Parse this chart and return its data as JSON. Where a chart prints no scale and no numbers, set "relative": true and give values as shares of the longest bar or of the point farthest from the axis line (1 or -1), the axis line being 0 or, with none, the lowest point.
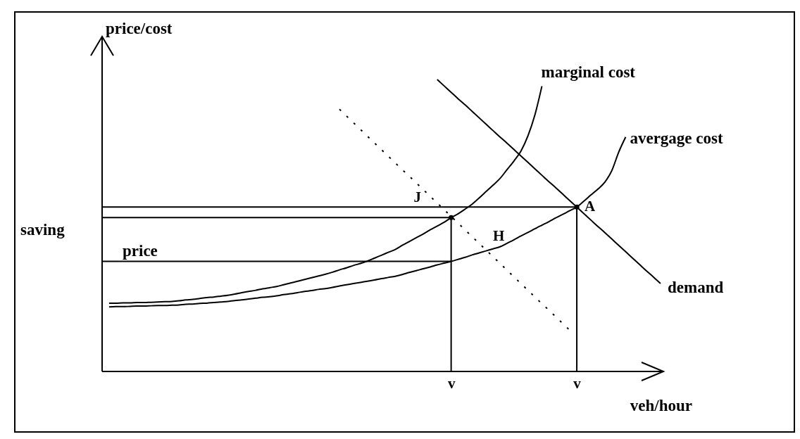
{
  "chart_data": {
    "type": "line",
    "relative": true,
    "ylabel": "price/cost",
    "xlabel": "veh/hour",
    "categories": [
      null,
      null,
      null,
      null,
      null,
      null,
      null,
      null,
      null,
      null,
      null,
      null,
      null,
      null,
      null,
      null,
      null,
      null,
      null,
      null,
      null,
      null,
      null,
      null,
      null,
      null,
      null,
      null,
      null,
      null,
      null,
      null,
      null,
      null,
      null,
      null,
      null,
      null,
      null,
      null,
      null,
      null,
      null,
      null,
      null,
      null,
      null,
      null,
      null,
      null,
      "v",
      null,
      null,
      null,
      null,
      null,
      null,
      null,
      null,
      null,
      null,
      null,
      null,
      null,
      null,
      null,
      null,
      null,
      "v",
      null,
      null,
      null,
      null,
      null,
      null,
      null,
      null,
      null,
      null,
      null,
      null
    ],
    "annotations": [
      "saving",
      "J",
      "H",
      "A"
    ],
    "series": [
      {
        "name": "marginal cost",
        "color": "#000000",
        "values": [
          null,
          0.234,
          0.234,
          0.235,
          0.235,
          0.236,
          0.236,
          0.237,
          0.238,
          0.239,
          0.24,
          0.242,
          0.245,
          0.247,
          0.25,
          0.253,
          0.255,
          0.258,
          0.261,
          0.265,
          0.27,
          0.274,
          0.278,
          0.283,
          0.287,
          0.291,
          0.297,
          0.303,
          0.309,
          0.315,
          0.321,
          0.327,
          0.333,
          0.34,
          0.348,
          0.355,
          0.363,
          0.37,
          0.378,
          0.388,
          0.398,
          0.408,
          0.418,
          0.432,
          0.445,
          0.458,
          0.471,
          0.485,
          0.498,
          0.511,
          0.527,
          0.54,
          0.556,
          0.573,
          0.594,
          0.616,
          0.638,
          0.661,
          0.691,
          0.721,
          0.755,
          0.807,
          0.879,
          0.977,
          null,
          null,
          null,
          null,
          null,
          null,
          null,
          null,
          null,
          null,
          null,
          null,
          null,
          null,
          null,
          null,
          null
        ]
      },
      {
        "name": "avergage cost",
        "color": "#000000",
        "values": [
          null,
          0.221,
          0.222,
          0.222,
          0.223,
          0.224,
          0.224,
          0.225,
          0.226,
          0.226,
          0.227,
          0.228,
          0.23,
          0.231,
          0.233,
          0.234,
          0.236,
          0.238,
          0.24,
          0.243,
          0.245,
          0.248,
          0.251,
          0.254,
          0.256,
          0.259,
          0.263,
          0.266,
          0.27,
          0.274,
          0.277,
          0.281,
          0.284,
          0.288,
          0.293,
          0.297,
          0.301,
          0.305,
          0.309,
          0.313,
          0.318,
          0.322,
          0.326,
          0.332,
          0.339,
          0.345,
          0.352,
          0.358,
          0.365,
          0.371,
          0.377,
          0.384,
          0.391,
          0.399,
          0.406,
          0.413,
          0.42,
          0.427,
          0.439,
          0.451,
          0.464,
          0.476,
          0.489,
          0.501,
          0.513,
          0.526,
          0.538,
          0.551,
          0.563,
          0.583,
          0.604,
          0.624,
          0.648,
          0.687,
          0.751,
          0.803,
          null,
          null,
          null,
          null,
          null
        ]
      },
      {
        "name": "demand",
        "color": "#000000",
        "values": [
          null,
          null,
          null,
          null,
          null,
          null,
          null,
          null,
          null,
          null,
          null,
          null,
          null,
          null,
          null,
          null,
          null,
          null,
          null,
          null,
          null,
          null,
          null,
          null,
          null,
          null,
          null,
          null,
          null,
          null,
          null,
          null,
          null,
          null,
          null,
          null,
          null,
          null,
          null,
          null,
          null,
          null,
          null,
          null,
          null,
          null,
          null,
          null,
          1.0,
          0.978,
          0.956,
          0.934,
          0.913,
          0.891,
          0.869,
          0.847,
          0.825,
          0.803,
          0.782,
          0.76,
          0.738,
          0.716,
          0.694,
          0.672,
          0.65,
          0.629,
          0.607,
          0.585,
          0.563,
          0.541,
          0.519,
          0.497,
          0.476,
          0.454,
          0.432,
          0.41,
          0.388,
          0.366,
          0.344,
          0.323,
          0.301
        ]
      },
      {
        "color": "#000000",
        "line_style": "dotted",
        "values": [
          null,
          null,
          null,
          null,
          null,
          null,
          null,
          null,
          null,
          null,
          null,
          null,
          null,
          null,
          null,
          null,
          null,
          null,
          null,
          null,
          null,
          null,
          null,
          null,
          null,
          null,
          null,
          null,
          null,
          null,
          null,
          null,
          null,
          null,
          0.898,
          0.875,
          0.852,
          0.829,
          0.806,
          0.783,
          0.76,
          0.737,
          0.714,
          0.691,
          0.669,
          0.646,
          0.623,
          0.6,
          0.577,
          0.554,
          0.531,
          0.508,
          0.485,
          0.462,
          0.439,
          0.416,
          0.393,
          0.37,
          0.347,
          0.324,
          0.301,
          0.278,
          0.255,
          0.232,
          0.21,
          0.187,
          0.164,
          0.141,
          null,
          null,
          null,
          null,
          null,
          null,
          null,
          null,
          null,
          null,
          null,
          null,
          null
        ]
      },
      {
        "name": "price",
        "color": "#000000",
        "values": [
          0.377,
          0.377,
          0.377,
          0.377,
          0.377,
          0.377,
          0.377,
          0.377,
          0.377,
          0.377,
          0.377,
          0.377,
          0.377,
          0.377,
          0.377,
          0.377,
          0.377,
          0.377,
          0.377,
          0.377,
          0.377,
          0.377,
          0.377,
          0.377,
          0.377,
          0.377,
          0.377,
          0.377,
          0.377,
          0.377,
          0.377,
          0.377,
          0.377,
          0.377,
          0.377,
          0.377,
          0.377,
          0.377,
          0.377,
          0.377,
          0.377,
          0.377,
          0.377,
          0.377,
          0.377,
          0.377,
          0.377,
          0.377,
          0.377,
          0.377,
          0.377,
          null,
          null,
          null,
          null,
          null,
          null,
          null,
          null,
          null,
          null,
          null,
          null,
          null,
          null,
          null,
          null,
          null,
          null,
          null,
          null,
          null,
          null,
          null,
          null,
          null,
          null,
          null,
          null,
          null,
          null
        ]
      },
      {
        "color": "#000000",
        "values": [
          0.563,
          0.563,
          0.563,
          0.563,
          0.563,
          0.563,
          0.563,
          0.563,
          0.563,
          0.563,
          0.563,
          0.563,
          0.563,
          0.563,
          0.563,
          0.563,
          0.563,
          0.563,
          0.563,
          0.563,
          0.563,
          0.563,
          0.563,
          0.563,
          0.563,
          0.563,
          0.563,
          0.563,
          0.563,
          0.563,
          0.563,
          0.563,
          0.563,
          0.563,
          0.563,
          0.563,
          0.563,
          0.563,
          0.563,
          0.563,
          0.563,
          0.563,
          0.563,
          0.563,
          0.563,
          0.563,
          0.563,
          0.563,
          0.563,
          0.563,
          0.563,
          0.563,
          0.563,
          0.563,
          0.563,
          0.563,
          0.563,
          0.563,
          0.563,
          0.563,
          0.563,
          0.563,
          0.563,
          0.563,
          0.563,
          0.563,
          0.563,
          0.563,
          0.563,
          null,
          null,
          null,
          null,
          null,
          null,
          null,
          null,
          null,
          null,
          null,
          null
        ]
      },
      {
        "color": "#000000",
        "values": [
          0.527,
          0.527,
          0.527,
          0.527,
          0.527,
          0.527,
          0.527,
          0.527,
          0.527,
          0.527,
          0.527,
          0.527,
          0.527,
          0.527,
          0.527,
          0.527,
          0.527,
          0.527,
          0.527,
          0.527,
          0.527,
          0.527,
          0.527,
          0.527,
          0.527,
          0.527,
          0.527,
          0.527,
          0.527,
          0.527,
          0.527,
          0.527,
          0.527,
          0.527,
          0.527,
          0.527,
          0.527,
          0.527,
          0.527,
          0.527,
          0.527,
          0.527,
          0.527,
          0.527,
          0.527,
          0.527,
          0.527,
          0.527,
          0.527,
          0.527,
          0.527,
          null,
          null,
          null,
          null,
          null,
          null,
          null,
          null,
          null,
          null,
          null,
          null,
          null,
          null,
          null,
          null,
          null,
          null,
          null,
          null,
          null,
          null,
          null,
          null,
          null,
          null,
          null,
          null,
          null,
          null
        ]
      },
      {
        "type": "lollipop",
        "marker": "circle",
        "color": "#000000",
        "values": [
          null,
          null,
          null,
          null,
          null,
          null,
          null,
          null,
          null,
          null,
          null,
          null,
          null,
          null,
          null,
          null,
          null,
          null,
          null,
          null,
          null,
          null,
          null,
          null,
          null,
          null,
          null,
          null,
          null,
          null,
          null,
          null,
          null,
          null,
          null,
          null,
          null,
          null,
          null,
          null,
          null,
          null,
          null,
          null,
          null,
          null,
          null,
          null,
          null,
          null,
          0.527,
          null,
          null,
          null,
          null,
          null,
          null,
          null,
          null,
          null,
          null,
          null,
          null,
          null,
          null,
          null,
          null,
          null,
          0.563,
          null,
          null,
          null,
          null,
          null,
          null,
          null,
          null,
          null,
          null,
          null,
          null
        ]
      }
    ]
  }
}
